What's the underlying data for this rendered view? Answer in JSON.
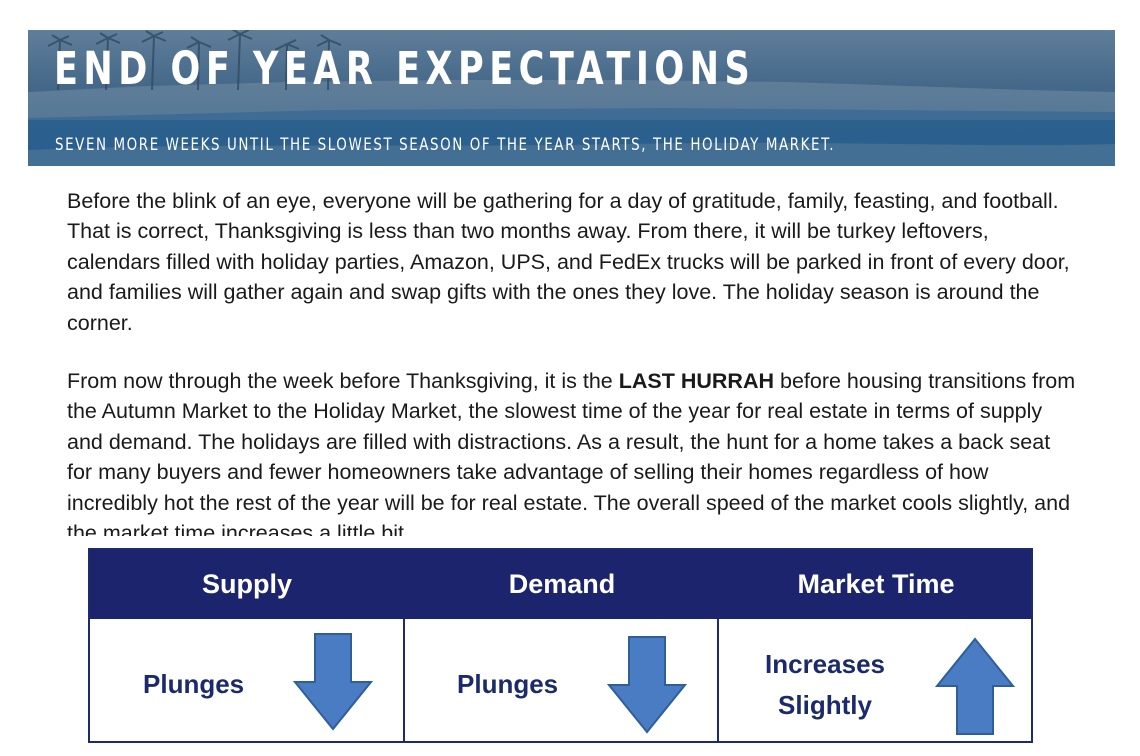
{
  "banner": {
    "title": "END OF YEAR EXPECTATIONS",
    "subtitle": "SEVEN MORE WEEKS UNTIL THE SLOWEST SEASON OF THE YEAR STARTS, THE HOLIDAY MARKET."
  },
  "paragraph1": "Before the blink of an eye, everyone will be gathering for a day of gratitude, family, feasting, and football. That is correct, Thanksgiving is less than two months away. From there, it will be turkey leftovers, calendars filled with holiday parties, Amazon, UPS, and FedEx trucks will be parked in front of every door, and families will gather again and swap gifts with the ones they love. The holiday season is around the corner.",
  "paragraph2": {
    "before": "From now through the week before Thanksgiving, it is the ",
    "emphasis": "LAST HURRAH",
    "after": " before housing transitions from the Autumn Market to the Holiday Market, the slowest time of the year for real estate in terms of supply and demand. The holidays are filled with distractions. As a result, the hunt for a home takes a back seat for many buyers and fewer homeowners take advantage of selling their homes regardless of how incredibly hot the rest of the year will be for real estate. The overall speed of the market cools slightly, and the market time increases a little bit."
  },
  "table": {
    "headers": [
      "Supply",
      "Demand",
      "Market Time"
    ],
    "cells": [
      {
        "label_line1": "Plunges",
        "label_line2": "",
        "arrow": "arrow-down-icon"
      },
      {
        "label_line1": "Plunges",
        "label_line2": "",
        "arrow": "arrow-down-icon"
      },
      {
        "label_line1": "Increases",
        "label_line2": "Slightly",
        "arrow": "arrow-up-icon"
      }
    ]
  },
  "colors": {
    "header_navy": "#1b246d",
    "label_navy": "#1b2a6b",
    "arrow_blue": "#4a7cc4",
    "arrow_outline": "#2f5f99"
  }
}
